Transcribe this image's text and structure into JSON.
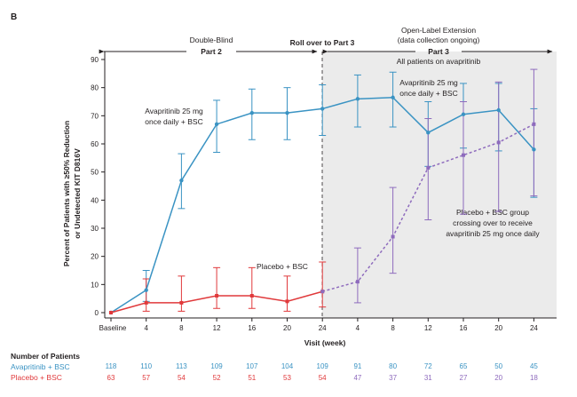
{
  "panel_label": "B",
  "phases": {
    "double_blind": "Double-Blind",
    "part2": "Part 2",
    "rollover": "Roll over to Part 3",
    "ole_line1": "Open-Label Extension",
    "ole_line2": "(data collection ongoing)",
    "part3": "Part 3",
    "all_patients": "All patients on avapritinib"
  },
  "annotations": {
    "ava_dbl_1": "Avapritinib 25 mg",
    "ava_dbl_2": "once daily + BSC",
    "ava_ole_1": "Avapritinib 25 mg",
    "ava_ole_2": "once daily + BSC",
    "placebo": "Placebo + BSC",
    "crossover_1": "Placebo + BSC group",
    "crossover_2": "crossing over to receive",
    "crossover_3": "avapritinib 25 mg once daily"
  },
  "colors": {
    "avapritinib": "#3a93c3",
    "placebo": "#e0393b",
    "crossover": "#8e6bbd",
    "shade": "#ebebeb",
    "axis": "#231f20"
  },
  "chart_data": {
    "type": "line",
    "title": "",
    "xlabel": "Visit (week)",
    "ylabel_line1": "Percent of Patients with ≥50% Reduction",
    "ylabel_line2": "or Undetected KIT D816V",
    "ylim": [
      0,
      90
    ],
    "yticks": [
      0,
      10,
      20,
      30,
      40,
      50,
      60,
      70,
      80,
      90
    ],
    "xtick_labels": [
      "Baseline",
      "4",
      "8",
      "12",
      "16",
      "20",
      "24",
      "4",
      "8",
      "12",
      "16",
      "20",
      "24"
    ],
    "series": [
      {
        "name": "Avapritinib + BSC",
        "x_index": [
          0,
          1,
          2,
          3,
          4,
          5,
          6,
          7,
          8,
          9,
          10,
          11,
          12
        ],
        "values": [
          0,
          8,
          47,
          67,
          71,
          71,
          72.5,
          76,
          76.5,
          64,
          70.5,
          72,
          58
        ],
        "err_low": [
          0,
          4,
          37,
          57,
          61.5,
          61.5,
          63,
          66,
          66,
          52,
          58.5,
          57.5,
          41
        ],
        "err_high": [
          0,
          15,
          56.5,
          75.5,
          79.5,
          80,
          81,
          84.5,
          85.5,
          75,
          81.5,
          81.5,
          72.5
        ]
      },
      {
        "name": "Placebo + BSC",
        "x_index": [
          0,
          1,
          2,
          3,
          4,
          5,
          6
        ],
        "values": [
          0,
          3.5,
          3.5,
          6,
          6,
          4,
          7.5
        ],
        "err_low": [
          0,
          0.5,
          0.5,
          1.5,
          1.5,
          0.5,
          2
        ],
        "err_high": [
          0,
          12,
          13,
          16,
          16,
          13,
          18
        ]
      },
      {
        "name": "Placebo + BSC crossover",
        "x_index": [
          6,
          7,
          8,
          9,
          10,
          11,
          12
        ],
        "values": [
          7.5,
          11,
          27,
          51.5,
          56,
          60.5,
          67
        ],
        "err_low": [
          null,
          3.5,
          14,
          33,
          35,
          36,
          41.5
        ],
        "err_high": [
          null,
          23,
          44.5,
          69,
          75,
          82,
          86.5
        ]
      }
    ]
  },
  "patients": {
    "heading": "Number of Patients",
    "rows": [
      {
        "label": "Avapritinib + BSC",
        "values": [
          "118",
          "110",
          "113",
          "109",
          "107",
          "104",
          "109",
          "91",
          "80",
          "72",
          "65",
          "50",
          "45"
        ]
      },
      {
        "label": "Placebo + BSC",
        "values": [
          "63",
          "57",
          "54",
          "52",
          "51",
          "53",
          "54",
          "47",
          "37",
          "31",
          "27",
          "20",
          "18"
        ]
      }
    ]
  }
}
